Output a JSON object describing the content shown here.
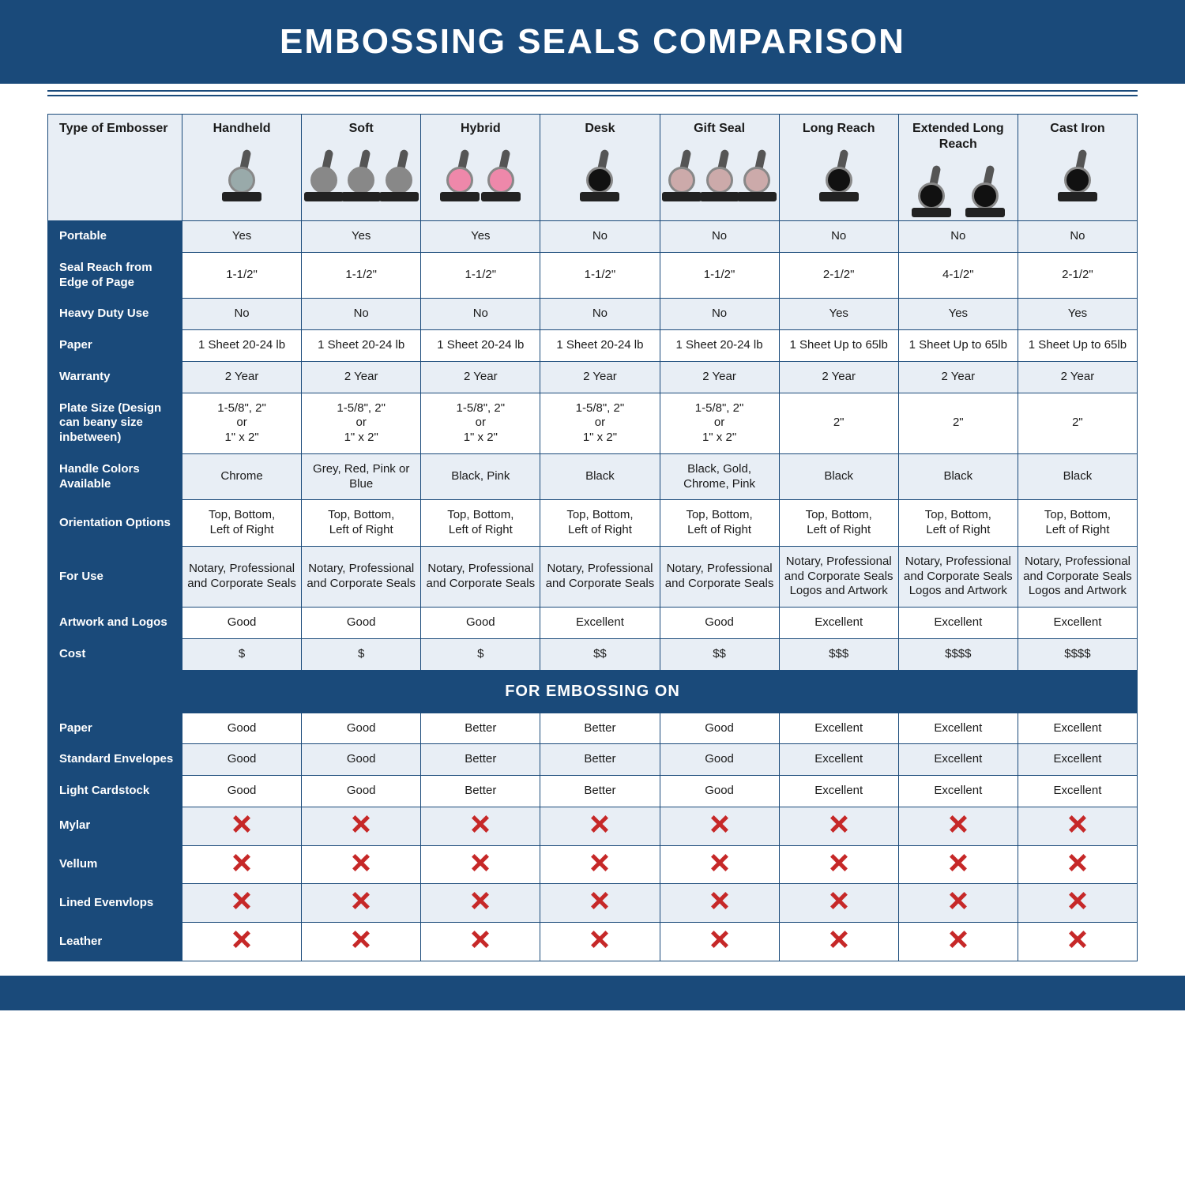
{
  "title": "EMBOSSING SEALS COMPARISON",
  "section_header": "FOR EMBOSSING ON",
  "header_row_label": "Type of Embosser",
  "columns": [
    "Handheld",
    "Soft",
    "Hybrid",
    "Desk",
    "Gift Seal",
    "Long Reach",
    "Extended Long Reach",
    "Cast Iron"
  ],
  "rows_main": [
    {
      "label": "Portable",
      "cells": [
        "Yes",
        "Yes",
        "Yes",
        "No",
        "No",
        "No",
        "No",
        "No"
      ]
    },
    {
      "label": "Seal Reach from Edge of Page",
      "cells": [
        "1-1/2\"",
        "1-1/2\"",
        "1-1/2\"",
        "1-1/2\"",
        "1-1/2\"",
        "2-1/2\"",
        "4-1/2\"",
        "2-1/2\""
      ]
    },
    {
      "label": "Heavy Duty Use",
      "cells": [
        "No",
        "No",
        "No",
        "No",
        "No",
        "Yes",
        "Yes",
        "Yes"
      ]
    },
    {
      "label": "Paper",
      "cells": [
        "1 Sheet 20-24 lb",
        "1 Sheet 20-24 lb",
        "1 Sheet 20-24 lb",
        "1 Sheet 20-24 lb",
        "1 Sheet 20-24 lb",
        "1 Sheet Up to 65lb",
        "1 Sheet Up to 65lb",
        "1 Sheet Up to 65lb"
      ]
    },
    {
      "label": "Warranty",
      "cells": [
        "2 Year",
        "2 Year",
        "2 Year",
        "2 Year",
        "2 Year",
        "2 Year",
        "2 Year",
        "2 Year"
      ]
    },
    {
      "label": "Plate Size (Design can beany size inbetween)",
      "cells": [
        "1-5/8\", 2\"\nor\n1\" x 2\"",
        "1-5/8\", 2\"\nor\n1\" x 2\"",
        "1-5/8\", 2\"\nor\n1\" x 2\"",
        "1-5/8\", 2\"\nor\n1\" x 2\"",
        "1-5/8\", 2\"\nor\n1\" x 2\"",
        "2\"",
        "2\"",
        "2\""
      ]
    },
    {
      "label": "Handle Colors Available",
      "cells": [
        "Chrome",
        "Grey, Red, Pink or Blue",
        "Black, Pink",
        "Black",
        "Black, Gold, Chrome, Pink",
        "Black",
        "Black",
        "Black"
      ]
    },
    {
      "label": "Orientation Options",
      "cells": [
        "Top, Bottom,\nLeft of Right",
        "Top, Bottom,\nLeft of Right",
        "Top, Bottom,\nLeft of Right",
        "Top, Bottom,\nLeft of Right",
        "Top, Bottom,\nLeft of Right",
        "Top, Bottom,\nLeft of Right",
        "Top, Bottom,\nLeft of Right",
        "Top, Bottom,\nLeft of Right"
      ]
    },
    {
      "label": "For Use",
      "cells": [
        "Notary, Professional and Corporate Seals",
        "Notary, Professional and Corporate Seals",
        "Notary, Professional and Corporate Seals",
        "Notary, Professional and Corporate Seals",
        "Notary, Professional and Corporate Seals",
        "Notary, Professional and Corporate Seals Logos and Artwork",
        "Notary, Professional and Corporate Seals Logos and Artwork",
        "Notary, Professional and Corporate Seals Logos and Artwork"
      ]
    },
    {
      "label": "Artwork and Logos",
      "cells": [
        "Good",
        "Good",
        "Good",
        "Excellent",
        "Good",
        "Excellent",
        "Excellent",
        "Excellent"
      ]
    },
    {
      "label": "Cost",
      "cells": [
        "$",
        "$",
        "$",
        "$$",
        "$$",
        "$$$",
        "$$$$",
        "$$$$"
      ]
    }
  ],
  "rows_embossing": [
    {
      "label": "Paper",
      "cells": [
        "Good",
        "Good",
        "Better",
        "Better",
        "Good",
        "Excellent",
        "Excellent",
        "Excellent"
      ]
    },
    {
      "label": "Standard Envelopes",
      "cells": [
        "Good",
        "Good",
        "Better",
        "Better",
        "Good",
        "Excellent",
        "Excellent",
        "Excellent"
      ]
    },
    {
      "label": "Light Cardstock",
      "cells": [
        "Good",
        "Good",
        "Better",
        "Better",
        "Good",
        "Excellent",
        "Excellent",
        "Excellent"
      ]
    },
    {
      "label": "Mylar",
      "cells": [
        "X",
        "X",
        "X",
        "X",
        "X",
        "X",
        "X",
        "X"
      ]
    },
    {
      "label": "Vellum",
      "cells": [
        "X",
        "X",
        "X",
        "X",
        "X",
        "X",
        "X",
        "X"
      ]
    },
    {
      "label": "Lined Evenvlops",
      "cells": [
        "X",
        "X",
        "X",
        "X",
        "X",
        "X",
        "X",
        "X"
      ]
    },
    {
      "label": "Leather",
      "cells": [
        "X",
        "X",
        "X",
        "X",
        "X",
        "X",
        "X",
        "X"
      ]
    }
  ],
  "style": {
    "brand_color": "#1a4a7a",
    "zebra_light": "#e8eef5",
    "zebra_white": "#ffffff",
    "x_color": "#c62828",
    "title_fontsize": 44,
    "body_fontsize": 15,
    "colhead_fontsize": 16,
    "section_fontsize": 20
  },
  "product_images": {
    "Handheld": {
      "count": 1,
      "size": "sm",
      "tint": "#9aa"
    },
    "Soft": {
      "count": 3,
      "size": "sm",
      "tint": "#888"
    },
    "Hybrid": {
      "count": 2,
      "size": "sm",
      "tint": "#e8a"
    },
    "Desk": {
      "count": 1,
      "size": "md",
      "tint": "#111"
    },
    "Gift Seal": {
      "count": 3,
      "size": "sm",
      "tint": "#caa"
    },
    "Long Reach": {
      "count": 1,
      "size": "lg",
      "tint": "#111"
    },
    "Extended Long Reach": {
      "count": 2,
      "size": "md",
      "tint": "#111"
    },
    "Cast Iron": {
      "count": 1,
      "size": "lg",
      "tint": "#111"
    }
  }
}
